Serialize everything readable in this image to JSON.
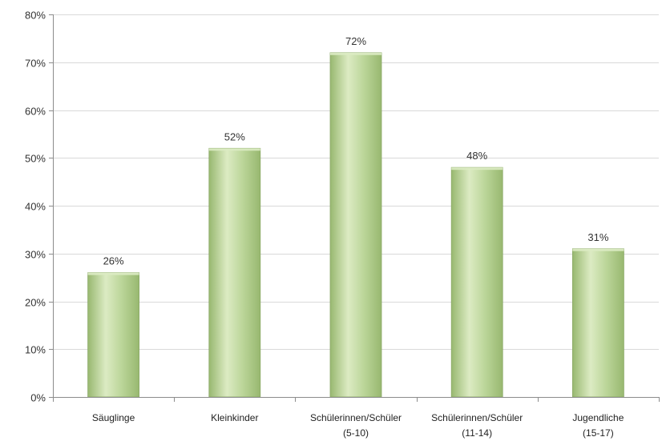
{
  "chart_data": {
    "type": "bar",
    "categories": [
      [
        "Säuglinge"
      ],
      [
        "Kleinkinder"
      ],
      [
        "Schülerinnen/Schüler",
        "(5-10)"
      ],
      [
        "Schülerinnen/Schüler",
        "(11-14)"
      ],
      [
        "Jugendliche",
        "(15-17)"
      ]
    ],
    "values": [
      26,
      52,
      72,
      48,
      31
    ],
    "data_labels": [
      "26%",
      "52%",
      "72%",
      "48%",
      "31%"
    ],
    "y_ticks": [
      0,
      10,
      20,
      30,
      40,
      50,
      60,
      70,
      80
    ],
    "y_tick_labels": [
      "0%",
      "10%",
      "20%",
      "30%",
      "40%",
      "50%",
      "60%",
      "70%",
      "80%"
    ],
    "ylim": [
      0,
      80
    ],
    "grid": true,
    "legend": "none",
    "colors": {
      "bar_light": "#dcebc3",
      "bar_mid": "#bcd69a",
      "bar_dark": "#98b870",
      "bar_edge": "#8aa866"
    }
  }
}
